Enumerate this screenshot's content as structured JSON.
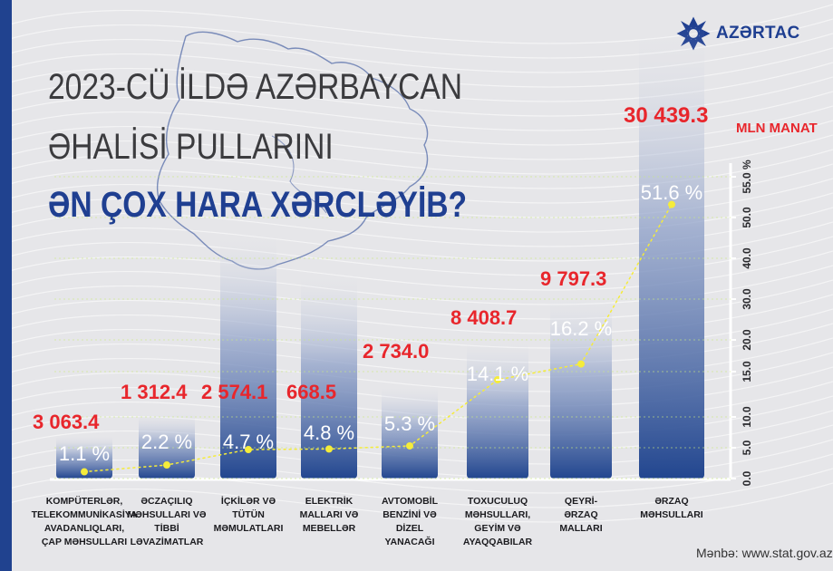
{
  "brand": {
    "name": "AZƏRTAC"
  },
  "title": {
    "line1": "2023-CÜ İLDƏ AZƏRBAYCAN",
    "line2": "ƏHALİSİ PULLARINI",
    "line3": "ƏN ÇOX HARA XƏRCLƏYİB?"
  },
  "source": "Mənbə: www.stat.gov.az",
  "colors": {
    "accent_red": "#e8262c",
    "brand_blue": "#1f3f91",
    "dot_yellow": "#f5ec3a"
  },
  "chart_data": {
    "type": "bar",
    "unit_label": "MLN MANAT",
    "categories": [
      [
        "KOMPÜTERLƏR,",
        "TELEKOMMUNİKASİYA",
        "AVADANLIQLARI,",
        "ÇAP MƏHSULLARI"
      ],
      [
        "ƏCZAÇILIQ",
        "MƏHSULLARI VƏ",
        "TİBBİ",
        "LƏVAZİMATLAR"
      ],
      [
        "İÇKİLƏR VƏ",
        "TÜTÜN",
        "MƏMULATLARI"
      ],
      [
        "ELEKTRİK",
        "MALLARI VƏ",
        "MEBELLƏR"
      ],
      [
        "AVTOMOBİL",
        "BENZİNİ VƏ",
        "DİZEL",
        "YANACAĞI"
      ],
      [
        "TOXUCULUQ",
        "MƏHSULLARI,",
        "GEYİM VƏ",
        "AYAQQABILAR"
      ],
      [
        "QEYRİ-",
        "ƏRZAQ",
        "MALLARI"
      ],
      [
        "ƏRZAQ",
        "MƏHSULLARI"
      ]
    ],
    "values": [
      3063.4,
      1312.4,
      2574.1,
      668.5,
      2734.0,
      8408.7,
      9797.3,
      30439.3
    ],
    "value_labels": [
      "3 063.4",
      "1 312.4",
      "2 574.1",
      "668.5",
      "2 734.0",
      "8 408.7",
      "9 797.3",
      "30 439.3"
    ],
    "shares": [
      1.1,
      2.2,
      4.7,
      4.8,
      5.3,
      14.1,
      16.2,
      51.6
    ],
    "share_labels": [
      "1.1 %",
      "2.2 %",
      "4.7 %",
      "4.8 %",
      "5.3 %",
      "14.1 %",
      "16.2 %",
      "51.6 %"
    ],
    "y_ticks": [
      "0.0",
      "5.0",
      "10.0",
      "15.0",
      "20.0",
      "30.0",
      "40.0",
      "50.0",
      "55.0 %"
    ],
    "y_tick_values": [
      0,
      5,
      10,
      15,
      20,
      30,
      40,
      50,
      55
    ]
  }
}
